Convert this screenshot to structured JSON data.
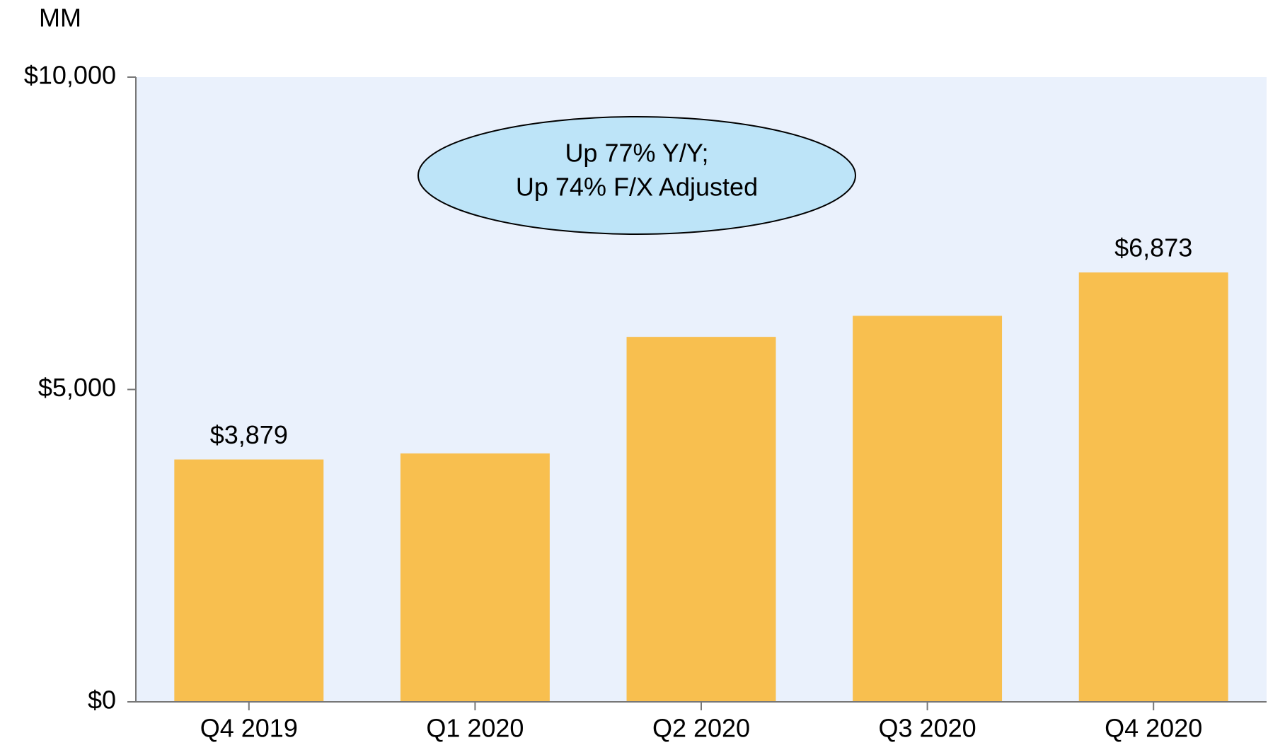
{
  "chart_data": {
    "type": "bar",
    "y_label": "MM",
    "categories": [
      "Q4 2019",
      "Q1 2020",
      "Q2 2020",
      "Q3 2020",
      "Q4 2020"
    ],
    "values": [
      3879,
      3977,
      5842,
      6179,
      6873
    ],
    "value_labels": [
      "$3,879",
      null,
      null,
      null,
      "$6,873"
    ],
    "color": "#f8bf4f",
    "ylim": [
      0,
      10000
    ],
    "yticks": [
      {
        "value": 0,
        "label": "$0"
      },
      {
        "value": 5000,
        "label": "$5,000"
      },
      {
        "value": 10000,
        "label": "$10,000"
      }
    ],
    "annotation": [
      "Up 77% Y/Y;",
      "Up 74% F/X Adjusted"
    ]
  }
}
